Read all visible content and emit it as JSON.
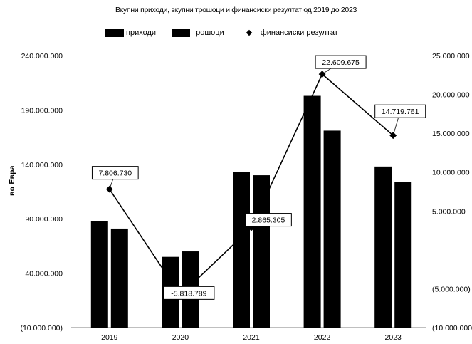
{
  "chart_data": {
    "type": "bar",
    "title": "Вкупни приходи, вкупни трошоци и финансиски резултат од 2019 до 2023",
    "ylabel": "во Евра",
    "categories": [
      "2019",
      "2020",
      "2021",
      "2022",
      "2023"
    ],
    "ylim": [
      -10000000,
      240000000
    ],
    "y2lim": [
      -10000000,
      25000000
    ],
    "yticks": [
      "(10.000.000)",
      "40.000.000",
      "90.000.000",
      "140.000.000",
      "190.000.000",
      "240.000.000"
    ],
    "y2ticks": [
      "(10.000.000)",
      "(5.000.000)",
      "",
      "5.000.000",
      "10.000.000",
      "15.000.000",
      "20.000.000",
      "25.000.000"
    ],
    "legend": "top",
    "grid": false,
    "series": [
      {
        "name": "приходи",
        "kind": "bar",
        "color": "#000000",
        "values": [
          88000000,
          55000000,
          133000000,
          203000000,
          138000000
        ]
      },
      {
        "name": "трошоци",
        "kind": "bar",
        "color": "#000000",
        "values": [
          81000000,
          60000000,
          130000000,
          171000000,
          124000000
        ]
      },
      {
        "name": "финансиски резултат",
        "kind": "line",
        "axis": "right",
        "color": "#000000",
        "values": [
          7806730,
          -5818789,
          2865305,
          22609675,
          14719761
        ],
        "labels": [
          "7.806.730",
          "-5.818.789",
          "2.865.305",
          "22.609.675",
          "14.719.761"
        ]
      }
    ]
  }
}
